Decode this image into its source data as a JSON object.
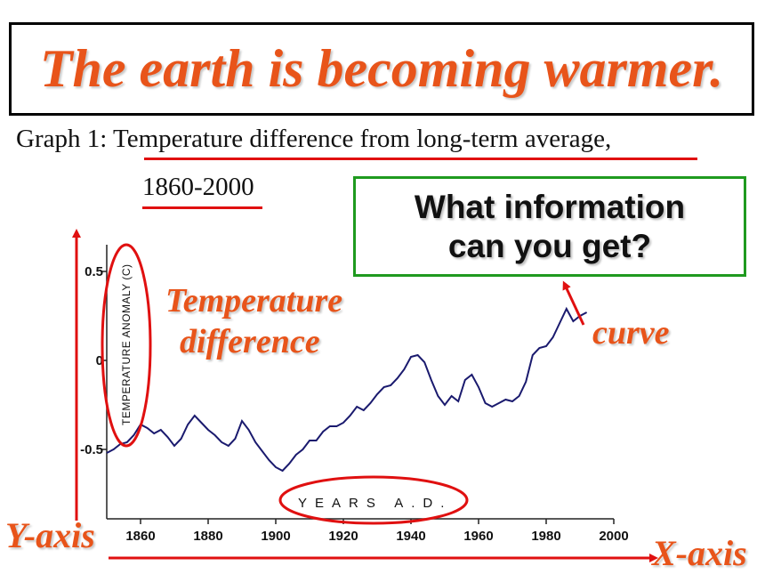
{
  "title": "The earth is becoming warmer.",
  "caption": {
    "line1": "Graph 1:  Temperature difference from long-term average,",
    "line2": "1860-2000"
  },
  "question": {
    "line1": "What information",
    "line2": "can you get?"
  },
  "annotations": {
    "temperature_line1": "Temperature",
    "temperature_line2": "difference",
    "curve": "curve",
    "y_axis": "Y-axis",
    "x_axis": "X-axis"
  },
  "colors": {
    "title": "#e8541a",
    "highlight": "#e01010",
    "question_border": "#1f9a1f",
    "line": "#1a1a6e"
  },
  "chart_data": {
    "type": "line",
    "ylabel": "TEMPERATURE ANOMALY (C)",
    "xlabel": "YEARS A.D.",
    "xlim": [
      1850,
      2000
    ],
    "ylim": [
      -0.75,
      0.6
    ],
    "x_ticks": [
      1860,
      1880,
      1900,
      1920,
      1940,
      1960,
      1980,
      2000
    ],
    "y_ticks": [
      {
        "value": 0.5,
        "label": "0.5"
      },
      {
        "value": 0,
        "label": "0"
      },
      {
        "value": -0.5,
        "label": "-0.5"
      }
    ],
    "series": [
      {
        "x": [
          1850,
          1852,
          1854,
          1856,
          1858,
          1860,
          1862,
          1864,
          1866,
          1868,
          1870,
          1872,
          1874,
          1876,
          1878,
          1880,
          1882,
          1884,
          1886,
          1888,
          1890,
          1892,
          1894,
          1896,
          1898,
          1900,
          1902,
          1904,
          1906,
          1908,
          1910,
          1912,
          1914,
          1916,
          1918,
          1920,
          1922,
          1924,
          1926,
          1928,
          1930,
          1932,
          1934,
          1936,
          1938,
          1940,
          1942,
          1944,
          1946,
          1948,
          1950,
          1952,
          1954,
          1956,
          1958,
          1960,
          1962,
          1964,
          1966,
          1968,
          1970,
          1972,
          1974,
          1976,
          1978,
          1980,
          1982,
          1984,
          1986,
          1988,
          1990,
          1992
        ],
        "y": [
          -0.52,
          -0.5,
          -0.47,
          -0.46,
          -0.42,
          -0.36,
          -0.38,
          -0.41,
          -0.39,
          -0.43,
          -0.48,
          -0.44,
          -0.36,
          -0.31,
          -0.35,
          -0.39,
          -0.42,
          -0.46,
          -0.48,
          -0.44,
          -0.34,
          -0.39,
          -0.46,
          -0.51,
          -0.56,
          -0.6,
          -0.62,
          -0.58,
          -0.53,
          -0.5,
          -0.45,
          -0.45,
          -0.4,
          -0.37,
          -0.37,
          -0.35,
          -0.31,
          -0.26,
          -0.28,
          -0.24,
          -0.19,
          -0.15,
          -0.14,
          -0.1,
          -0.05,
          0.02,
          0.03,
          -0.01,
          -0.11,
          -0.2,
          -0.25,
          -0.2,
          -0.23,
          -0.11,
          -0.08,
          -0.15,
          -0.24,
          -0.26,
          -0.24,
          -0.22,
          -0.23,
          -0.2,
          -0.12,
          0.03,
          0.07,
          0.08,
          0.13,
          0.21,
          0.29,
          0.22,
          0.25,
          0.27
        ]
      }
    ]
  }
}
